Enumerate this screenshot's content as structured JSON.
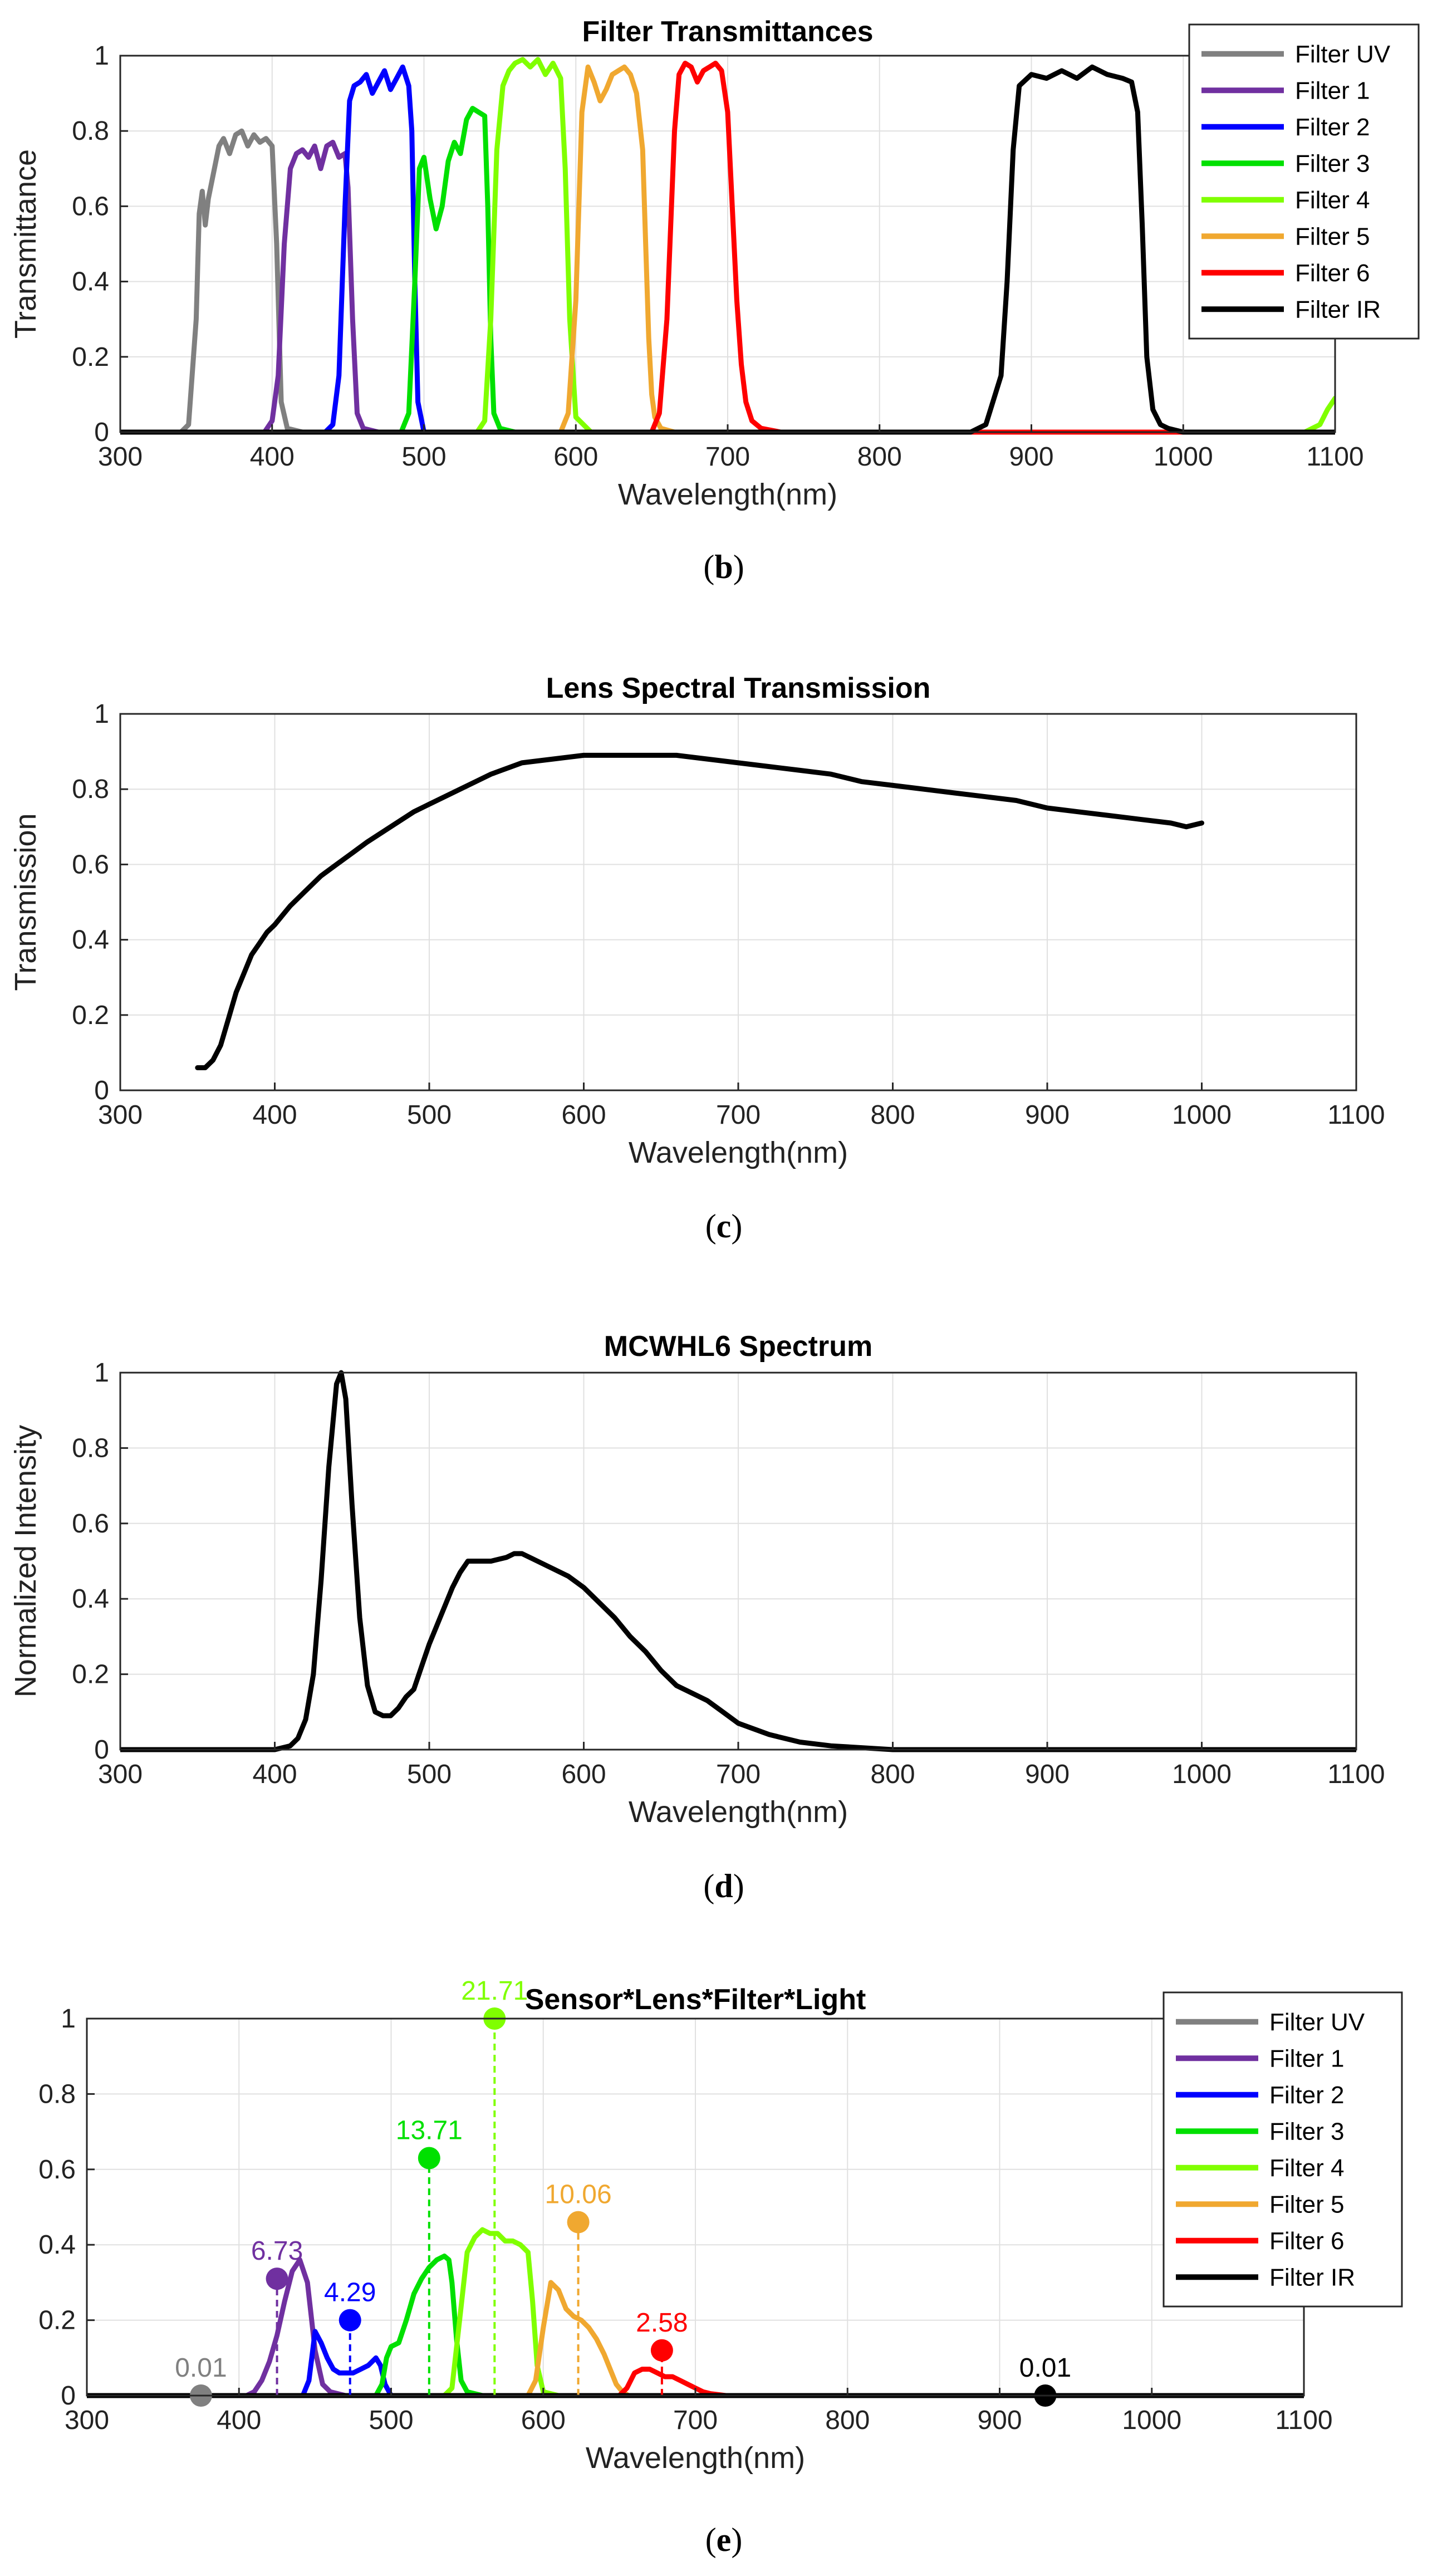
{
  "chart_data": [
    {
      "type": "line",
      "id": "b",
      "caption_letter": "b",
      "title": "Filter Transmittances",
      "xlabel": "Wavelength(nm)",
      "ylabel": "Transmittance",
      "xlim": [
        300,
        1100
      ],
      "ylim": [
        0,
        1
      ],
      "xticks": [
        300,
        400,
        500,
        600,
        700,
        800,
        900,
        1000,
        1100
      ],
      "yticks": [
        0,
        0.2,
        0.4,
        0.6,
        0.8,
        1
      ],
      "grid": true,
      "legend_position": "top-right",
      "series": [
        {
          "name": "Filter UV",
          "color": "#808080",
          "x": [
            300,
            340,
            345,
            350,
            352,
            354,
            356,
            358,
            362,
            365,
            368,
            372,
            376,
            380,
            384,
            388,
            392,
            396,
            400,
            403,
            406,
            410,
            420,
            1100
          ],
          "y": [
            0,
            0,
            0.02,
            0.3,
            0.58,
            0.64,
            0.55,
            0.62,
            0.7,
            0.76,
            0.78,
            0.74,
            0.79,
            0.8,
            0.76,
            0.79,
            0.77,
            0.78,
            0.76,
            0.5,
            0.08,
            0.01,
            0,
            0
          ]
        },
        {
          "name": "Filter 1",
          "color": "#7030A0",
          "x": [
            300,
            395,
            400,
            404,
            408,
            412,
            416,
            420,
            424,
            428,
            432,
            436,
            440,
            444,
            448,
            450,
            453,
            456,
            460,
            470,
            1100
          ],
          "y": [
            0,
            0,
            0.03,
            0.15,
            0.5,
            0.7,
            0.74,
            0.75,
            0.73,
            0.76,
            0.7,
            0.76,
            0.77,
            0.73,
            0.74,
            0.65,
            0.3,
            0.05,
            0.01,
            0,
            0
          ]
        },
        {
          "name": "Filter 2",
          "color": "#0000FF",
          "x": [
            300,
            435,
            440,
            444,
            448,
            451,
            454,
            458,
            462,
            466,
            470,
            474,
            478,
            482,
            486,
            490,
            492,
            494,
            496,
            500,
            1100
          ],
          "y": [
            0,
            0,
            0.02,
            0.15,
            0.6,
            0.88,
            0.92,
            0.93,
            0.95,
            0.9,
            0.93,
            0.96,
            0.91,
            0.94,
            0.97,
            0.92,
            0.8,
            0.4,
            0.08,
            0,
            0
          ]
        },
        {
          "name": "Filter 3",
          "color": "#00E000",
          "x": [
            300,
            485,
            490,
            494,
            497,
            500,
            504,
            508,
            512,
            516,
            520,
            524,
            528,
            532,
            536,
            540,
            542,
            544,
            546,
            550,
            560,
            1100
          ],
          "y": [
            0,
            0,
            0.05,
            0.4,
            0.7,
            0.73,
            0.62,
            0.54,
            0.6,
            0.72,
            0.77,
            0.74,
            0.83,
            0.86,
            0.85,
            0.84,
            0.6,
            0.25,
            0.05,
            0.01,
            0,
            0
          ]
        },
        {
          "name": "Filter 4",
          "color": "#80FF00",
          "x": [
            300,
            535,
            540,
            544,
            548,
            552,
            556,
            560,
            565,
            570,
            575,
            580,
            585,
            590,
            593,
            596,
            600,
            610,
            1080,
            1090,
            1095,
            1100
          ],
          "y": [
            0,
            0,
            0.03,
            0.3,
            0.75,
            0.92,
            0.96,
            0.98,
            0.99,
            0.97,
            0.99,
            0.95,
            0.98,
            0.94,
            0.7,
            0.3,
            0.04,
            0,
            0,
            0.02,
            0.06,
            0.09
          ]
        },
        {
          "name": "Filter 5",
          "color": "#F0A830",
          "x": [
            300,
            590,
            595,
            600,
            604,
            608,
            612,
            616,
            620,
            624,
            628,
            632,
            636,
            640,
            644,
            646,
            648,
            650,
            652,
            656,
            665,
            1100
          ],
          "y": [
            0,
            0,
            0.05,
            0.35,
            0.85,
            0.97,
            0.93,
            0.88,
            0.91,
            0.95,
            0.96,
            0.97,
            0.95,
            0.9,
            0.75,
            0.5,
            0.25,
            0.1,
            0.04,
            0.01,
            0,
            0
          ]
        },
        {
          "name": "Filter 6",
          "color": "#FF0000",
          "x": [
            300,
            650,
            655,
            660,
            665,
            668,
            672,
            676,
            680,
            684,
            688,
            692,
            696,
            700,
            703,
            706,
            709,
            712,
            716,
            722,
            735,
            1100
          ],
          "y": [
            0,
            0,
            0.05,
            0.3,
            0.8,
            0.95,
            0.98,
            0.97,
            0.93,
            0.96,
            0.97,
            0.98,
            0.96,
            0.85,
            0.6,
            0.35,
            0.18,
            0.08,
            0.03,
            0.01,
            0,
            0
          ]
        },
        {
          "name": "Filter IR",
          "color": "#000000",
          "x": [
            300,
            860,
            870,
            880,
            884,
            888,
            892,
            900,
            910,
            920,
            930,
            940,
            950,
            960,
            966,
            970,
            973,
            976,
            980,
            985,
            990,
            1000,
            1100
          ],
          "y": [
            0,
            0,
            0.02,
            0.15,
            0.4,
            0.75,
            0.92,
            0.95,
            0.94,
            0.96,
            0.94,
            0.97,
            0.95,
            0.94,
            0.93,
            0.85,
            0.55,
            0.2,
            0.06,
            0.02,
            0.01,
            0,
            0
          ]
        }
      ]
    },
    {
      "type": "line",
      "id": "c",
      "caption_letter": "c",
      "title": "Lens Spectral Transmission",
      "xlabel": "Wavelength(nm)",
      "ylabel": "Transmission",
      "xlim": [
        300,
        1100
      ],
      "ylim": [
        0,
        1
      ],
      "xticks": [
        300,
        400,
        500,
        600,
        700,
        800,
        900,
        1000,
        1100
      ],
      "yticks": [
        0,
        0.2,
        0.4,
        0.6,
        0.8,
        1
      ],
      "grid": true,
      "series": [
        {
          "name": "Lens",
          "color": "#000000",
          "x": [
            350,
            355,
            360,
            365,
            370,
            375,
            380,
            385,
            390,
            395,
            400,
            410,
            420,
            430,
            440,
            450,
            460,
            475,
            490,
            500,
            520,
            540,
            560,
            580,
            600,
            620,
            640,
            660,
            680,
            700,
            720,
            740,
            760,
            780,
            800,
            820,
            840,
            860,
            880,
            900,
            920,
            940,
            960,
            980,
            990,
            1000
          ],
          "y": [
            0.06,
            0.06,
            0.08,
            0.12,
            0.19,
            0.26,
            0.31,
            0.36,
            0.39,
            0.42,
            0.44,
            0.49,
            0.53,
            0.57,
            0.6,
            0.63,
            0.66,
            0.7,
            0.74,
            0.76,
            0.8,
            0.84,
            0.87,
            0.88,
            0.89,
            0.89,
            0.89,
            0.89,
            0.88,
            0.87,
            0.86,
            0.85,
            0.84,
            0.82,
            0.81,
            0.8,
            0.79,
            0.78,
            0.77,
            0.75,
            0.74,
            0.73,
            0.72,
            0.71,
            0.7,
            0.71
          ]
        }
      ]
    },
    {
      "type": "line",
      "id": "d",
      "caption_letter": "d",
      "title": "MCWHL6 Spectrum",
      "xlabel": "Wavelength(nm)",
      "ylabel": "Normalized Intensity",
      "xlim": [
        300,
        1100
      ],
      "ylim": [
        0,
        1
      ],
      "xticks": [
        300,
        400,
        500,
        600,
        700,
        800,
        900,
        1000,
        1100
      ],
      "yticks": [
        0,
        0.2,
        0.4,
        0.6,
        0.8,
        1
      ],
      "grid": true,
      "series": [
        {
          "name": "MCWHL6",
          "color": "#000000",
          "x": [
            300,
            400,
            410,
            415,
            420,
            425,
            430,
            435,
            440,
            443,
            446,
            450,
            455,
            460,
            465,
            470,
            475,
            480,
            485,
            490,
            495,
            500,
            505,
            510,
            515,
            520,
            525,
            530,
            540,
            550,
            555,
            560,
            570,
            580,
            590,
            600,
            610,
            620,
            630,
            640,
            650,
            660,
            670,
            680,
            690,
            700,
            720,
            740,
            760,
            800,
            900,
            1100
          ],
          "y": [
            0,
            0,
            0.01,
            0.03,
            0.08,
            0.2,
            0.45,
            0.75,
            0.97,
            1.0,
            0.93,
            0.65,
            0.35,
            0.17,
            0.1,
            0.09,
            0.09,
            0.11,
            0.14,
            0.16,
            0.22,
            0.28,
            0.33,
            0.38,
            0.43,
            0.47,
            0.5,
            0.5,
            0.5,
            0.51,
            0.52,
            0.52,
            0.5,
            0.48,
            0.46,
            0.43,
            0.39,
            0.35,
            0.3,
            0.26,
            0.21,
            0.17,
            0.15,
            0.13,
            0.1,
            0.07,
            0.04,
            0.02,
            0.01,
            0,
            0,
            0
          ]
        }
      ]
    },
    {
      "type": "line",
      "id": "e",
      "caption_letter": "e",
      "title": "Sensor*Lens*Filter*Light",
      "xlabel": "Wavelength(nm)",
      "ylabel": "",
      "xlim": [
        300,
        1100
      ],
      "ylim": [
        0,
        1
      ],
      "xticks": [
        300,
        400,
        500,
        600,
        700,
        800,
        900,
        1000,
        1100
      ],
      "yticks": [
        0,
        0.2,
        0.4,
        0.6,
        0.8,
        1
      ],
      "grid": true,
      "legend_position": "top-right",
      "series": [
        {
          "name": "Filter UV",
          "color": "#808080",
          "x": [
            300,
            1100
          ],
          "y": [
            0,
            0
          ],
          "stem": {
            "x": 375,
            "y": 0.0,
            "label": "0.01"
          }
        },
        {
          "name": "Filter 1",
          "color": "#7030A0",
          "x": [
            300,
            405,
            410,
            415,
            420,
            425,
            430,
            435,
            440,
            445,
            450,
            455,
            460,
            470,
            1100
          ],
          "y": [
            0,
            0,
            0.01,
            0.04,
            0.09,
            0.16,
            0.25,
            0.33,
            0.36,
            0.3,
            0.12,
            0.03,
            0.01,
            0,
            0
          ],
          "stem": {
            "x": 425,
            "y": 0.31,
            "label": "6.73"
          }
        },
        {
          "name": "Filter 2",
          "color": "#0000FF",
          "x": [
            300,
            442,
            446,
            450,
            454,
            458,
            462,
            466,
            470,
            475,
            480,
            485,
            490,
            493,
            496,
            500,
            1100
          ],
          "y": [
            0,
            0,
            0.04,
            0.17,
            0.14,
            0.1,
            0.07,
            0.06,
            0.06,
            0.06,
            0.07,
            0.08,
            0.1,
            0.08,
            0.03,
            0,
            0
          ],
          "stem": {
            "x": 473,
            "y": 0.2,
            "label": "4.29"
          }
        },
        {
          "name": "Filter 3",
          "color": "#00E000",
          "x": [
            300,
            490,
            494,
            497,
            500,
            505,
            510,
            515,
            520,
            525,
            530,
            535,
            538,
            540,
            543,
            546,
            550,
            560,
            1100
          ],
          "y": [
            0,
            0,
            0.03,
            0.1,
            0.13,
            0.14,
            0.2,
            0.27,
            0.31,
            0.34,
            0.36,
            0.37,
            0.36,
            0.3,
            0.15,
            0.04,
            0.01,
            0,
            0
          ],
          "stem": {
            "x": 525,
            "y": 0.63,
            "label": "13.71"
          }
        },
        {
          "name": "Filter 4",
          "color": "#80FF00",
          "x": [
            300,
            535,
            540,
            545,
            550,
            555,
            560,
            565,
            570,
            575,
            580,
            585,
            590,
            593,
            596,
            600,
            610,
            1100
          ],
          "y": [
            0,
            0,
            0.02,
            0.2,
            0.38,
            0.42,
            0.44,
            0.43,
            0.43,
            0.41,
            0.41,
            0.4,
            0.38,
            0.25,
            0.08,
            0.01,
            0,
            0
          ],
          "stem": {
            "x": 568,
            "y": 1.0,
            "label": "21.71"
          }
        },
        {
          "name": "Filter 5",
          "color": "#F0A830",
          "x": [
            300,
            590,
            595,
            600,
            605,
            610,
            615,
            620,
            625,
            630,
            635,
            640,
            645,
            648,
            652,
            656,
            665,
            1100
          ],
          "y": [
            0,
            0,
            0.04,
            0.18,
            0.3,
            0.28,
            0.23,
            0.21,
            0.2,
            0.18,
            0.15,
            0.11,
            0.06,
            0.03,
            0.01,
            0,
            0,
            0
          ],
          "stem": {
            "x": 623,
            "y": 0.46,
            "label": "10.06"
          }
        },
        {
          "name": "Filter 6",
          "color": "#FF0000",
          "x": [
            300,
            650,
            655,
            660,
            665,
            670,
            675,
            680,
            685,
            690,
            695,
            700,
            705,
            710,
            720,
            1100
          ],
          "y": [
            0,
            0,
            0.02,
            0.06,
            0.07,
            0.07,
            0.06,
            0.05,
            0.05,
            0.04,
            0.03,
            0.02,
            0.01,
            0.005,
            0,
            0
          ],
          "stem": {
            "x": 678,
            "y": 0.12,
            "label": "2.58"
          }
        },
        {
          "name": "Filter IR",
          "color": "#000000",
          "x": [
            300,
            1100
          ],
          "y": [
            0,
            0
          ],
          "stem": {
            "x": 930,
            "y": 0.0,
            "label": "0.01"
          }
        }
      ]
    }
  ]
}
